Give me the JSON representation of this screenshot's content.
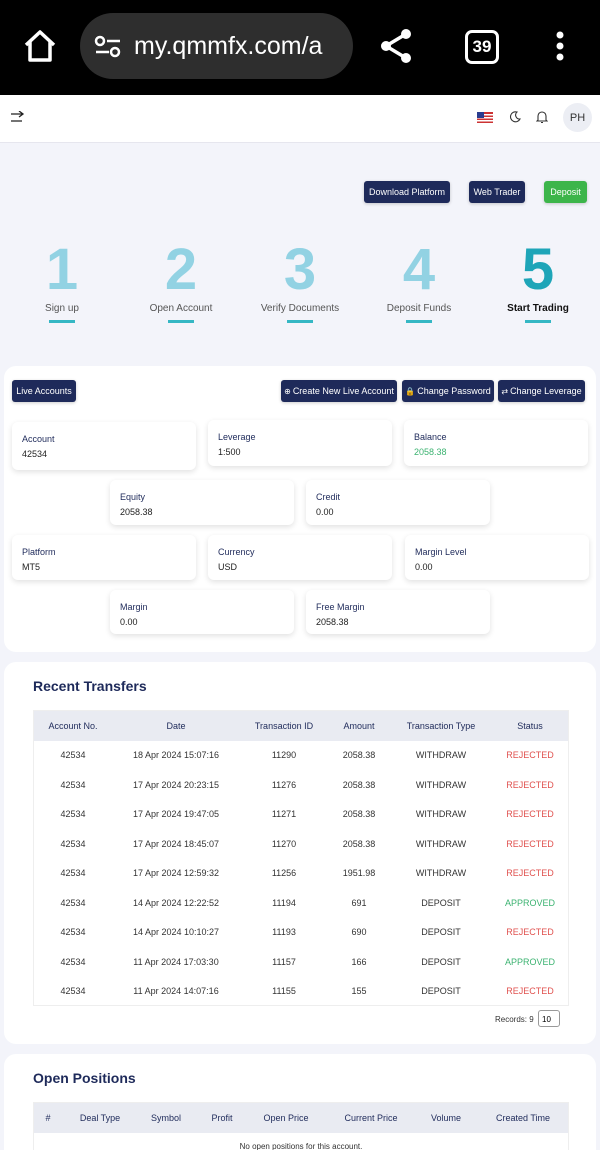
{
  "browser": {
    "url": "my.qmmfx.com/a",
    "tabs": "39"
  },
  "header": {
    "avatar": "PH"
  },
  "actions": [
    "Download Platform",
    "Web Trader",
    "Deposit"
  ],
  "steps": [
    {
      "number": "1",
      "label": "Sign up"
    },
    {
      "number": "2",
      "label": "Open Account"
    },
    {
      "number": "3",
      "label": "Verify Documents"
    },
    {
      "number": "4",
      "label": "Deposit Funds"
    },
    {
      "number": "5",
      "label": "Start Trading"
    }
  ],
  "accounts": {
    "tab": "Live Accounts",
    "buttons": [
      "Create New Live Account",
      "Change Password",
      "Change Leverage"
    ],
    "cards": [
      {
        "label": "Account",
        "value": "42534"
      },
      {
        "label": "Leverage",
        "value": "1:500"
      },
      {
        "label": "Balance",
        "value": "2058.38"
      },
      {
        "label": "Equity",
        "value": "2058.38"
      },
      {
        "label": "Credit",
        "value": "0.00"
      },
      {
        "label": "Platform",
        "value": "MT5"
      },
      {
        "label": "Currency",
        "value": "USD"
      },
      {
        "label": "Margin Level",
        "value": "0.00"
      },
      {
        "label": "Margin",
        "value": "0.00"
      },
      {
        "label": "Free Margin",
        "value": "2058.38"
      }
    ]
  },
  "transfers": {
    "title": "Recent Transfers",
    "columns": [
      "Account No.",
      "Date",
      "Transaction ID",
      "Amount",
      "Transaction Type",
      "Status"
    ],
    "rows": [
      [
        "42534",
        "18 Apr 2024 15:07:16",
        "11290",
        "2058.38",
        "WITHDRAW",
        "REJECTED"
      ],
      [
        "42534",
        "17 Apr 2024 20:23:15",
        "11276",
        "2058.38",
        "WITHDRAW",
        "REJECTED"
      ],
      [
        "42534",
        "17 Apr 2024 19:47:05",
        "11271",
        "2058.38",
        "WITHDRAW",
        "REJECTED"
      ],
      [
        "42534",
        "17 Apr 2024 18:45:07",
        "11270",
        "2058.38",
        "WITHDRAW",
        "REJECTED"
      ],
      [
        "42534",
        "17 Apr 2024 12:59:32",
        "11256",
        "1951.98",
        "WITHDRAW",
        "REJECTED"
      ],
      [
        "42534",
        "14 Apr 2024 12:22:52",
        "11194",
        "691",
        "DEPOSIT",
        "APPROVED"
      ],
      [
        "42534",
        "14 Apr 2024 10:10:27",
        "11193",
        "690",
        "DEPOSIT",
        "REJECTED"
      ],
      [
        "42534",
        "11 Apr 2024 17:03:30",
        "11157",
        "166",
        "DEPOSIT",
        "APPROVED"
      ],
      [
        "42534",
        "11 Apr 2024 14:07:16",
        "11155",
        "155",
        "DEPOSIT",
        "REJECTED"
      ]
    ],
    "records": "Records: 9",
    "page_size": "10"
  },
  "positions": {
    "title": "Open Positions",
    "columns": [
      "#",
      "Deal Type",
      "Symbol",
      "Profit",
      "Open Price",
      "Current Price",
      "Volume",
      "Created Time"
    ],
    "empty": "No open positions for this account."
  }
}
